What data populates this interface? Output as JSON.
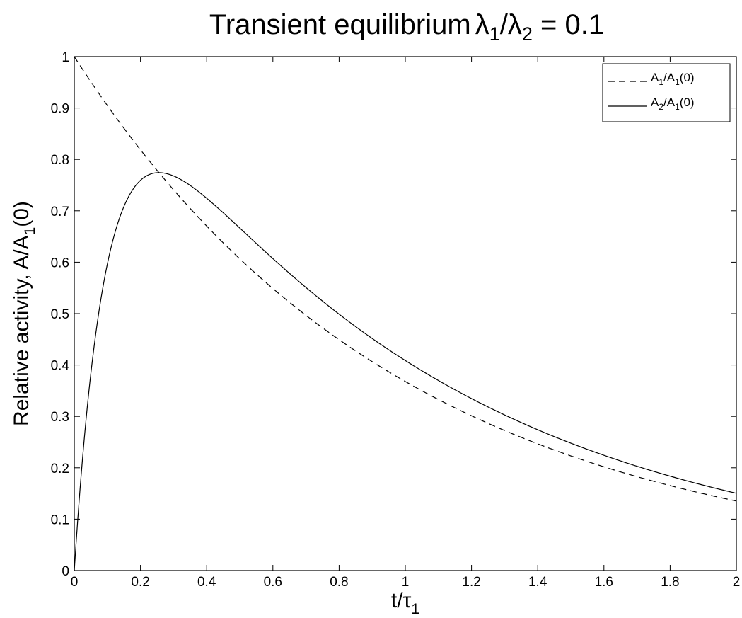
{
  "chart_data": {
    "type": "line",
    "title": {
      "prefix": "Transient equilibrium",
      "sym1": "λ",
      "sub1": "1",
      "slash": "/",
      "sym2": "λ",
      "sub2": "2",
      "suffix": " = 0.1"
    },
    "xlabel": {
      "main": "t/τ",
      "sub": "1"
    },
    "ylabel": {
      "main": "Relative activity,  A/A",
      "sub": "1",
      "tail": "(0)"
    },
    "xlim": [
      0,
      2
    ],
    "ylim": [
      0,
      1
    ],
    "xticks": [
      "0",
      "0.2",
      "0.4",
      "0.6",
      "0.8",
      "1",
      "1.2",
      "1.4",
      "1.6",
      "1.8",
      "2"
    ],
    "yticks": [
      "0",
      "0.1",
      "0.2",
      "0.3",
      "0.4",
      "0.5",
      "0.6",
      "0.7",
      "0.8",
      "0.9",
      "1"
    ],
    "grid": false,
    "legend_position": "top-right",
    "model": {
      "lambda_ratio": 0.1
    },
    "series": [
      {
        "legend": {
          "a": "A",
          "sub1": "1",
          "b": "/A",
          "sub2": "1",
          "c": "(0)"
        },
        "line_style": "dashed",
        "color": "#000000",
        "x": [
          0,
          0.1,
          0.2,
          0.25,
          0.3,
          0.4,
          0.5,
          0.6,
          0.7,
          0.8,
          0.9,
          1.0,
          1.1,
          1.2,
          1.3,
          1.4,
          1.5,
          1.6,
          1.7,
          1.8,
          1.9,
          2.0
        ],
        "y": [
          1.0,
          0.905,
          0.819,
          0.779,
          0.741,
          0.67,
          0.607,
          0.549,
          0.497,
          0.449,
          0.407,
          0.368,
          0.333,
          0.301,
          0.273,
          0.247,
          0.223,
          0.202,
          0.183,
          0.165,
          0.15,
          0.135
        ]
      },
      {
        "legend": {
          "a": "A",
          "sub1": "2",
          "b": "/A",
          "sub2": "1",
          "c": "(0)"
        },
        "line_style": "solid",
        "color": "#000000",
        "x": [
          0,
          0.01,
          0.02,
          0.03,
          0.05,
          0.075,
          0.1,
          0.125,
          0.15,
          0.175,
          0.2,
          0.225,
          0.25,
          0.256,
          0.3,
          0.35,
          0.4,
          0.5,
          0.6,
          0.7,
          0.8,
          0.9,
          1.0,
          1.1,
          1.2,
          1.3,
          1.4,
          1.5,
          1.6,
          1.7,
          1.8,
          1.9,
          2.0
        ],
        "y": [
          0,
          0.095,
          0.182,
          0.26,
          0.394,
          0.525,
          0.62,
          0.688,
          0.733,
          0.762,
          0.777,
          0.783,
          0.782,
          0.781,
          0.771,
          0.747,
          0.716,
          0.647,
          0.583,
          0.528,
          0.479,
          0.433,
          0.393,
          0.356,
          0.322,
          0.292,
          0.264,
          0.239,
          0.216,
          0.196,
          0.177,
          0.16,
          0.145
        ]
      }
    ]
  }
}
